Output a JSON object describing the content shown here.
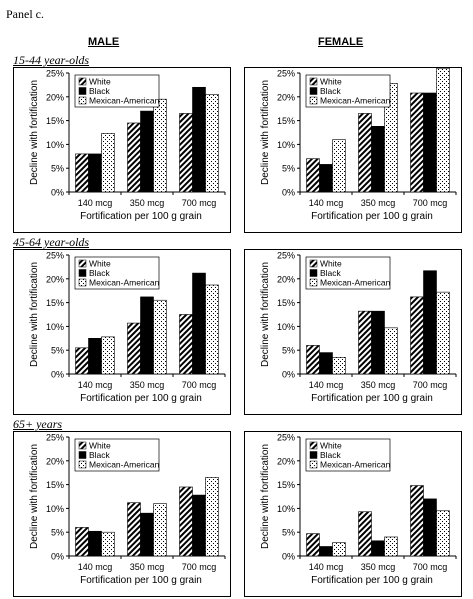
{
  "panel_label": "Panel c.",
  "columns": {
    "male": "MALE",
    "female": "FEMALE"
  },
  "rows": [
    "15-44 year-olds",
    "45-64 year-olds",
    "65+ years"
  ],
  "common": {
    "categories": [
      "140 mcg",
      "350 mcg",
      "700 mcg"
    ],
    "xlabel": "Fortification per 100 g grain",
    "ylabel": "Decline with fortification",
    "yticks": [
      "0%",
      "5%",
      "10%",
      "15%",
      "20%",
      "25%"
    ],
    "legend": [
      "White",
      "Black",
      "Mexican-American"
    ]
  },
  "chart_data": [
    {
      "type": "bar",
      "panel": "MALE / 15-44 year-olds",
      "categories": [
        "140 mcg",
        "350 mcg",
        "700 mcg"
      ],
      "series": [
        {
          "name": "White",
          "values": [
            8,
            14.5,
            16.5
          ]
        },
        {
          "name": "Black",
          "values": [
            8,
            17,
            22
          ]
        },
        {
          "name": "Mexican-American",
          "values": [
            12.3,
            19.5,
            20.5
          ]
        }
      ],
      "xlabel": "Fortification per 100 g grain",
      "ylabel": "Decline with fortification",
      "ylim": [
        0,
        25
      ],
      "legend_position": "top-left"
    },
    {
      "type": "bar",
      "panel": "FEMALE / 15-44 year-olds",
      "categories": [
        "140 mcg",
        "350 mcg",
        "700 mcg"
      ],
      "series": [
        {
          "name": "White",
          "values": [
            7,
            16.5,
            20.8
          ]
        },
        {
          "name": "Black",
          "values": [
            5.8,
            13.8,
            20.8
          ]
        },
        {
          "name": "Mexican-American",
          "values": [
            11,
            22.8,
            26
          ]
        }
      ],
      "xlabel": "Fortification per 100 g grain",
      "ylabel": "Decline with fortification",
      "ylim": [
        0,
        25
      ],
      "legend_position": "top-left"
    },
    {
      "type": "bar",
      "panel": "MALE / 45-64 year-olds",
      "categories": [
        "140 mcg",
        "350 mcg",
        "700 mcg"
      ],
      "series": [
        {
          "name": "White",
          "values": [
            5.5,
            10.7,
            12.5
          ]
        },
        {
          "name": "Black",
          "values": [
            7.5,
            16.2,
            21.2
          ]
        },
        {
          "name": "Mexican-American",
          "values": [
            7.8,
            15.5,
            18.7
          ]
        }
      ],
      "xlabel": "Fortification per 100 g grain",
      "ylabel": "Decline with fortification",
      "ylim": [
        0,
        25
      ],
      "legend_position": "top-left"
    },
    {
      "type": "bar",
      "panel": "FEMALE / 45-64 year-olds",
      "categories": [
        "140 mcg",
        "350 mcg",
        "700 mcg"
      ],
      "series": [
        {
          "name": "White",
          "values": [
            6,
            13.2,
            16.2
          ]
        },
        {
          "name": "Black",
          "values": [
            4.5,
            13.2,
            21.7
          ]
        },
        {
          "name": "Mexican-American",
          "values": [
            3.5,
            9.7,
            17.2
          ]
        }
      ],
      "xlabel": "Fortification per 100 g grain",
      "ylabel": "Decline with fortification",
      "ylim": [
        0,
        25
      ],
      "legend_position": "top-left"
    },
    {
      "type": "bar",
      "panel": "MALE / 65+ years",
      "categories": [
        "140 mcg",
        "350 mcg",
        "700 mcg"
      ],
      "series": [
        {
          "name": "White",
          "values": [
            6,
            11.2,
            14.5
          ]
        },
        {
          "name": "Black",
          "values": [
            5.2,
            9,
            12.8
          ]
        },
        {
          "name": "Mexican-American",
          "values": [
            5,
            11,
            16.5
          ]
        }
      ],
      "xlabel": "Fortification per 100 g grain",
      "ylabel": "Decline with fortification",
      "ylim": [
        0,
        25
      ],
      "legend_position": "top-left"
    },
    {
      "type": "bar",
      "panel": "FEMALE / 65+ years",
      "categories": [
        "140 mcg",
        "350 mcg",
        "700 mcg"
      ],
      "series": [
        {
          "name": "White",
          "values": [
            4.7,
            9.3,
            14.8
          ]
        },
        {
          "name": "Black",
          "values": [
            2,
            3.2,
            12
          ]
        },
        {
          "name": "Mexican-American",
          "values": [
            2.8,
            4,
            9.5
          ]
        }
      ],
      "xlabel": "Fortification per 100 g grain",
      "ylabel": "Decline with fortification",
      "ylim": [
        0,
        25
      ],
      "legend_position": "top-left"
    }
  ]
}
